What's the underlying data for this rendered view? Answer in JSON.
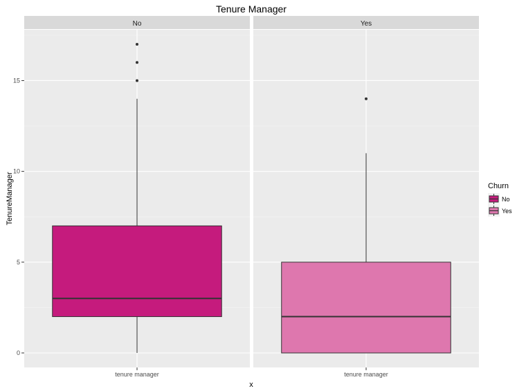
{
  "chart_data": {
    "type": "boxplot",
    "title": "Tenure Manager",
    "xlabel": "x",
    "ylabel": "TenureManager",
    "ylim": [
      -0.8,
      17.8
    ],
    "yticks": [
      0,
      5,
      10,
      15
    ],
    "grid": true,
    "facets": [
      {
        "strip": "No",
        "category": "tenure manager",
        "fill": "#C51B7D",
        "box": {
          "whisker_low": 0,
          "q1": 2,
          "median": 3,
          "q3": 7,
          "whisker_high": 14
        },
        "outliers": [
          15,
          16,
          17
        ]
      },
      {
        "strip": "Yes",
        "category": "tenure manager",
        "fill": "#DE77AE",
        "box": {
          "whisker_low": 0,
          "q1": 0,
          "median": 2,
          "q3": 5,
          "whisker_high": 11
        },
        "outliers": [
          14
        ]
      }
    ],
    "legend": {
      "title": "Churn",
      "position": "right",
      "entries": [
        {
          "label": "No",
          "color": "#C51B7D"
        },
        {
          "label": "Yes",
          "color": "#DE77AE"
        }
      ]
    }
  }
}
